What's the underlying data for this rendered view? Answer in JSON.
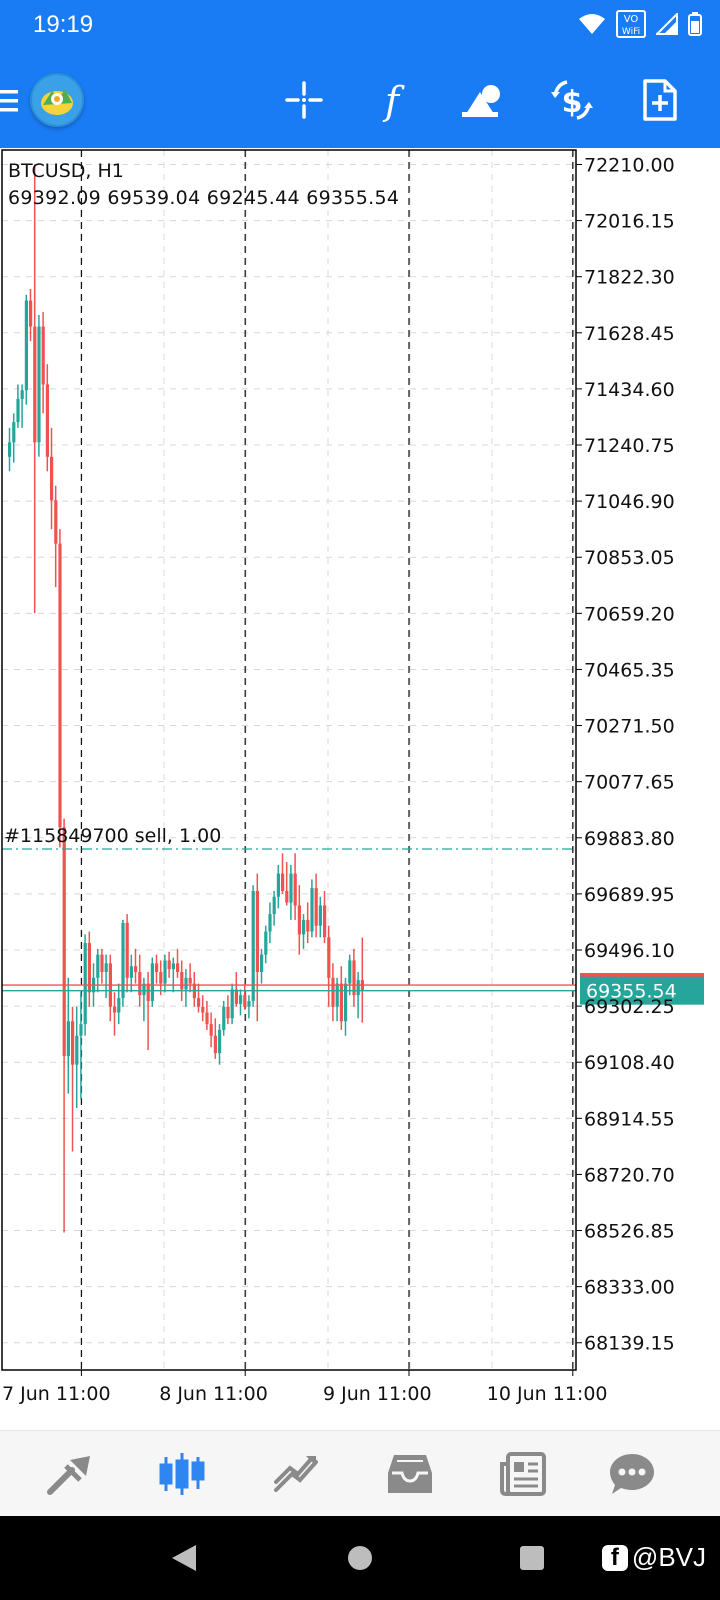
{
  "status_bar": {
    "time": "19:19",
    "vowifi_top": "VO",
    "vowifi_bottom": "WiFi"
  },
  "toolbar": {
    "buttons": [
      "crosshair-icon",
      "indicators-icon",
      "objects-icon",
      "trade-icon",
      "new-order-icon"
    ]
  },
  "chart": {
    "symbol": "BTCUSD, H1",
    "ohlc": "69392.09 69539.04 69245.44 69355.54",
    "order_line_label": "#115849700 sell, 1.00",
    "order_price": 69845.0,
    "current_price_label": "69355.54",
    "current_price": 69355.54,
    "ask_price": 69375.0,
    "price_axis": [
      "72210.00",
      "72016.15",
      "71822.30",
      "71628.45",
      "71434.60",
      "71240.75",
      "71046.90",
      "70853.05",
      "70659.20",
      "70465.35",
      "70271.50",
      "70077.65",
      "69883.80",
      "69689.95",
      "69496.10",
      "69302.25",
      "69108.40",
      "68914.55",
      "68720.70",
      "68526.85",
      "68333.00",
      "68139.15"
    ],
    "time_axis": [
      "7 Jun 11:00",
      "8 Jun 11:00",
      "9 Jun 11:00",
      "10 Jun 11:00"
    ],
    "colors": {
      "bull": "#26a69a",
      "bear": "#ef5350",
      "axis": "#000000",
      "grid": "#d8d8d8",
      "ask_line": "#ef5350",
      "order_line": "#26a69a",
      "price_tag": "#26a69a"
    }
  },
  "chart_data": {
    "type": "candlestick",
    "title": "BTCUSD, H1",
    "ylim": [
      68045,
      72260
    ],
    "y_ticks": [
      72210.0,
      72016.15,
      71822.3,
      71628.45,
      71434.6,
      71240.75,
      71046.9,
      70853.05,
      70659.2,
      70465.35,
      70271.5,
      70077.65,
      69883.8,
      69689.95,
      69496.1,
      69302.25,
      69108.4,
      68914.55,
      68720.7,
      68526.85,
      68333.0,
      68139.15
    ],
    "x_labels": [
      "7 Jun 11:00",
      "8 Jun 11:00",
      "9 Jun 11:00",
      "10 Jun 11:00"
    ],
    "x_label_index": [
      17,
      56,
      95,
      134
    ],
    "grid": true,
    "candles": [
      {
        "o": 71200,
        "h": 71300,
        "l": 71150,
        "c": 71250
      },
      {
        "o": 71250,
        "h": 71350,
        "l": 71180,
        "c": 71320
      },
      {
        "o": 71320,
        "h": 71450,
        "l": 71300,
        "c": 71400
      },
      {
        "o": 71400,
        "h": 71450,
        "l": 71300,
        "c": 71430
      },
      {
        "o": 71430,
        "h": 71760,
        "l": 71380,
        "c": 71740
      },
      {
        "o": 71740,
        "h": 71780,
        "l": 71600,
        "c": 71650
      },
      {
        "o": 71650,
        "h": 72210,
        "l": 70660,
        "c": 71250
      },
      {
        "o": 71250,
        "h": 71690,
        "l": 71200,
        "c": 71650
      },
      {
        "o": 71650,
        "h": 71700,
        "l": 71350,
        "c": 71450
      },
      {
        "o": 71450,
        "h": 71520,
        "l": 71150,
        "c": 71200
      },
      {
        "o": 71200,
        "h": 71300,
        "l": 70950,
        "c": 71050
      },
      {
        "o": 71050,
        "h": 71100,
        "l": 70750,
        "c": 70900
      },
      {
        "o": 70900,
        "h": 70950,
        "l": 69850,
        "c": 69920
      },
      {
        "o": 69920,
        "h": 69950,
        "l": 68520,
        "c": 69130
      },
      {
        "o": 69130,
        "h": 69400,
        "l": 69000,
        "c": 69250
      },
      {
        "o": 69250,
        "h": 69300,
        "l": 68800,
        "c": 69100
      },
      {
        "o": 69100,
        "h": 69300,
        "l": 68950,
        "c": 69200
      },
      {
        "o": 69200,
        "h": 69350,
        "l": 68980,
        "c": 69240
      },
      {
        "o": 69240,
        "h": 69550,
        "l": 69200,
        "c": 69520
      },
      {
        "o": 69520,
        "h": 69560,
        "l": 69300,
        "c": 69350
      },
      {
        "o": 69350,
        "h": 69450,
        "l": 69300,
        "c": 69400
      },
      {
        "o": 69400,
        "h": 69500,
        "l": 69350,
        "c": 69480
      },
      {
        "o": 69480,
        "h": 69500,
        "l": 69380,
        "c": 69420
      },
      {
        "o": 69420,
        "h": 69480,
        "l": 69330,
        "c": 69450
      },
      {
        "o": 69450,
        "h": 69480,
        "l": 69250,
        "c": 69300
      },
      {
        "o": 69300,
        "h": 69350,
        "l": 69200,
        "c": 69280
      },
      {
        "o": 69280,
        "h": 69380,
        "l": 69240,
        "c": 69330
      },
      {
        "o": 69330,
        "h": 69600,
        "l": 69300,
        "c": 69590
      },
      {
        "o": 69590,
        "h": 69620,
        "l": 69350,
        "c": 69400
      },
      {
        "o": 69400,
        "h": 69480,
        "l": 69350,
        "c": 69440
      },
      {
        "o": 69440,
        "h": 69500,
        "l": 69380,
        "c": 69420
      },
      {
        "o": 69420,
        "h": 69480,
        "l": 69300,
        "c": 69340
      },
      {
        "o": 69340,
        "h": 69400,
        "l": 69250,
        "c": 69380
      },
      {
        "o": 69380,
        "h": 69420,
        "l": 69150,
        "c": 69320
      },
      {
        "o": 69320,
        "h": 69470,
        "l": 69300,
        "c": 69450
      },
      {
        "o": 69450,
        "h": 69480,
        "l": 69380,
        "c": 69420
      },
      {
        "o": 69420,
        "h": 69460,
        "l": 69340,
        "c": 69380
      },
      {
        "o": 69380,
        "h": 69480,
        "l": 69350,
        "c": 69460
      },
      {
        "o": 69460,
        "h": 69490,
        "l": 69400,
        "c": 69430
      },
      {
        "o": 69430,
        "h": 69470,
        "l": 69350,
        "c": 69450
      },
      {
        "o": 69450,
        "h": 69500,
        "l": 69400,
        "c": 69420
      },
      {
        "o": 69420,
        "h": 69460,
        "l": 69320,
        "c": 69360
      },
      {
        "o": 69360,
        "h": 69430,
        "l": 69300,
        "c": 69400
      },
      {
        "o": 69400,
        "h": 69450,
        "l": 69350,
        "c": 69380
      },
      {
        "o": 69380,
        "h": 69420,
        "l": 69300,
        "c": 69330
      },
      {
        "o": 69330,
        "h": 69380,
        "l": 69280,
        "c": 69300
      },
      {
        "o": 69300,
        "h": 69340,
        "l": 69250,
        "c": 69280
      },
      {
        "o": 69280,
        "h": 69320,
        "l": 69220,
        "c": 69240
      },
      {
        "o": 69240,
        "h": 69280,
        "l": 69160,
        "c": 69200
      },
      {
        "o": 69200,
        "h": 69260,
        "l": 69120,
        "c": 69140
      },
      {
        "o": 69140,
        "h": 69240,
        "l": 69100,
        "c": 69220
      },
      {
        "o": 69220,
        "h": 69320,
        "l": 69200,
        "c": 69300
      },
      {
        "o": 69300,
        "h": 69340,
        "l": 69240,
        "c": 69260
      },
      {
        "o": 69260,
        "h": 69380,
        "l": 69240,
        "c": 69360
      },
      {
        "o": 69360,
        "h": 69420,
        "l": 69300,
        "c": 69310
      },
      {
        "o": 69310,
        "h": 69360,
        "l": 69270,
        "c": 69340
      },
      {
        "o": 69340,
        "h": 69380,
        "l": 69290,
        "c": 69300
      },
      {
        "o": 69300,
        "h": 69340,
        "l": 69260,
        "c": 69320
      },
      {
        "o": 69320,
        "h": 69720,
        "l": 69300,
        "c": 69700
      },
      {
        "o": 69700,
        "h": 69760,
        "l": 69250,
        "c": 69420
      },
      {
        "o": 69420,
        "h": 69500,
        "l": 69380,
        "c": 69480
      },
      {
        "o": 69480,
        "h": 69580,
        "l": 69450,
        "c": 69560
      },
      {
        "o": 69560,
        "h": 69660,
        "l": 69520,
        "c": 69620
      },
      {
        "o": 69620,
        "h": 69700,
        "l": 69580,
        "c": 69680
      },
      {
        "o": 69680,
        "h": 69790,
        "l": 69640,
        "c": 69760
      },
      {
        "o": 69760,
        "h": 69830,
        "l": 69690,
        "c": 69700
      },
      {
        "o": 69700,
        "h": 69800,
        "l": 69650,
        "c": 69660
      },
      {
        "o": 69660,
        "h": 69790,
        "l": 69600,
        "c": 69760
      },
      {
        "o": 69760,
        "h": 69830,
        "l": 69600,
        "c": 69650
      },
      {
        "o": 69650,
        "h": 69720,
        "l": 69480,
        "c": 69550
      },
      {
        "o": 69550,
        "h": 69620,
        "l": 69500,
        "c": 69600
      },
      {
        "o": 69600,
        "h": 69660,
        "l": 69520,
        "c": 69560
      },
      {
        "o": 69560,
        "h": 69740,
        "l": 69540,
        "c": 69710
      },
      {
        "o": 69710,
        "h": 69760,
        "l": 69540,
        "c": 69580
      },
      {
        "o": 69580,
        "h": 69680,
        "l": 69540,
        "c": 69650
      },
      {
        "o": 69650,
        "h": 69700,
        "l": 69520,
        "c": 69540
      },
      {
        "o": 69540,
        "h": 69580,
        "l": 69300,
        "c": 69400
      },
      {
        "o": 69400,
        "h": 69450,
        "l": 69250,
        "c": 69300
      },
      {
        "o": 69300,
        "h": 69400,
        "l": 69250,
        "c": 69380
      },
      {
        "o": 69380,
        "h": 69440,
        "l": 69220,
        "c": 69250
      },
      {
        "o": 69250,
        "h": 69400,
        "l": 69200,
        "c": 69380
      },
      {
        "o": 69380,
        "h": 69480,
        "l": 69340,
        "c": 69460
      },
      {
        "o": 69460,
        "h": 69500,
        "l": 69300,
        "c": 69340
      },
      {
        "o": 69340,
        "h": 69420,
        "l": 69260,
        "c": 69392
      },
      {
        "o": 69392,
        "h": 69539,
        "l": 69245,
        "c": 69355
      }
    ]
  },
  "bottom_nav": {
    "items": [
      "quotes-icon",
      "chart-icon",
      "trade-icon",
      "history-icon",
      "news-icon",
      "messages-icon"
    ]
  },
  "system_nav": {
    "watermark": "@BVJ"
  }
}
